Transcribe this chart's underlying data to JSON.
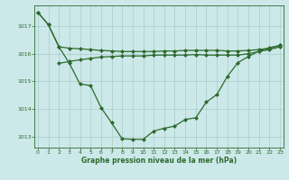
{
  "line1": {
    "x": [
      0,
      1,
      2,
      3,
      4,
      5,
      6,
      7,
      8,
      9,
      10,
      11,
      12,
      13,
      14,
      15,
      16,
      17,
      18,
      19,
      20,
      21,
      22,
      23
    ],
    "y": [
      1017.5,
      1017.05,
      1016.25,
      1016.2,
      1016.18,
      1016.15,
      1016.12,
      1016.1,
      1016.08,
      1016.08,
      1016.08,
      1016.08,
      1016.1,
      1016.1,
      1016.12,
      1016.12,
      1016.12,
      1016.12,
      1016.1,
      1016.1,
      1016.12,
      1016.15,
      1016.2,
      1016.3
    ]
  },
  "line2": {
    "x": [
      2,
      3,
      4,
      5,
      6,
      7,
      8,
      9,
      10,
      11,
      12,
      13,
      14,
      15,
      16,
      17,
      18,
      19,
      20,
      21,
      22,
      23
    ],
    "y": [
      1015.65,
      1015.72,
      1015.78,
      1015.83,
      1015.88,
      1015.9,
      1015.92,
      1015.92,
      1015.92,
      1015.95,
      1015.95,
      1015.95,
      1015.95,
      1015.97,
      1015.95,
      1015.95,
      1015.95,
      1015.95,
      1016.0,
      1016.08,
      1016.15,
      1016.25
    ]
  },
  "line3": {
    "x": [
      0,
      1,
      2,
      3,
      4,
      5,
      6,
      7,
      8,
      9,
      10,
      11,
      12,
      13,
      14,
      15,
      16,
      17,
      18,
      19,
      20,
      21,
      22,
      23
    ],
    "y": [
      1017.5,
      1017.05,
      1016.25,
      1015.65,
      1014.9,
      1014.85,
      1014.05,
      1013.5,
      1012.92,
      1012.9,
      1012.9,
      1013.2,
      1013.3,
      1013.38,
      1013.62,
      1013.68,
      1014.25,
      1014.52,
      1015.18,
      1015.68,
      1015.9,
      1016.1,
      1016.22,
      1016.3
    ]
  },
  "ylim": [
    1012.6,
    1017.75
  ],
  "xlim": [
    -0.3,
    23.3
  ],
  "yticks": [
    1013,
    1014,
    1015,
    1016,
    1017
  ],
  "xticks": [
    0,
    1,
    2,
    3,
    4,
    5,
    6,
    7,
    8,
    9,
    10,
    11,
    12,
    13,
    14,
    15,
    16,
    17,
    18,
    19,
    20,
    21,
    22,
    23
  ],
  "xlabel": "Graphe pression niveau de la mer (hPa)",
  "line_color": "#2d6a2d",
  "bg_color": "#cce8e8",
  "grid_color": "#aacccc",
  "marker": "D",
  "marker_size": 2.0,
  "line_width": 0.9,
  "tick_fontsize": 4.5,
  "xlabel_fontsize": 5.5
}
